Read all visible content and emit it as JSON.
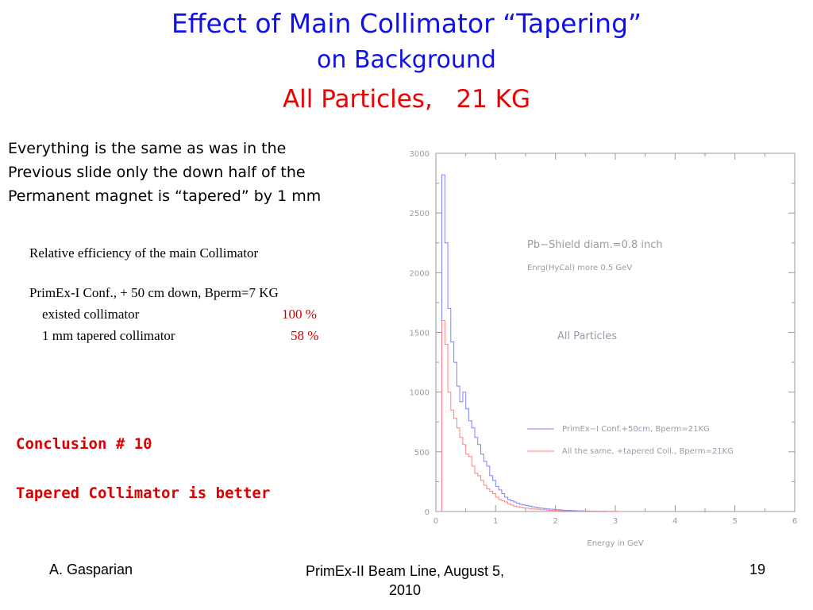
{
  "slide": {
    "title_line1": "Effect of Main Collimator “Tapering”",
    "title_line2": "on Background",
    "title_line3": "All Particles,   21 KG",
    "description": [
      "Everything is the same as was in the",
      "Previous slide only the down half of the",
      "Permanent magnet is “tapered” by 1 mm"
    ],
    "efficiency": {
      "heading": "Relative efficiency of the main Collimator",
      "config": "PrimEx-I Conf., + 50 cm down, Bperm=7 KG",
      "rows": [
        {
          "label": "existed collimator",
          "value": "100 %"
        },
        {
          "label": "1 mm tapered collimator",
          "value": "58 %"
        }
      ]
    },
    "conclusion": {
      "title": "Conclusion # 10",
      "text": "Tapered Collimator is better"
    },
    "footer": {
      "author": "A. Gasparian",
      "event_line1": "PrimEx-II Beam Line, August 5,",
      "event_line2": "2010",
      "page": "19"
    }
  },
  "chart_data": {
    "type": "line",
    "title": "",
    "xlabel": "Energy in GeV",
    "ylabel": "",
    "xlim": [
      0,
      6
    ],
    "ylim": [
      0,
      3000
    ],
    "x_ticks": [
      "0",
      "1",
      "2",
      "3",
      "4",
      "5",
      "6"
    ],
    "y_ticks": [
      "0",
      "500",
      "1000",
      "1500",
      "2000",
      "2500",
      "3000"
    ],
    "annotations": [
      "Pb−Shield diam.=0.8 inch",
      "Enrg(HyCal) more 0.5 GeV",
      "All Particles"
    ],
    "grid": false,
    "legend_position": "lower-right",
    "bin_width": 0.05,
    "x_start": 0.1,
    "series": [
      {
        "name": "PrimEx−I Conf.+50cm, Bperm=21KG",
        "color": "#8080ff",
        "values": [
          2820,
          2250,
          1700,
          1420,
          1250,
          1050,
          920,
          1000,
          860,
          760,
          700,
          620,
          560,
          480,
          420,
          380,
          300,
          260,
          210,
          180,
          150,
          120,
          100,
          90,
          80,
          70,
          60,
          55,
          50,
          45,
          40,
          35,
          30,
          28,
          25,
          22,
          20,
          18,
          16,
          15,
          12,
          10,
          10,
          8,
          8,
          6,
          6,
          5,
          4,
          4,
          3,
          3,
          2,
          2,
          2,
          1,
          1,
          1,
          1,
          0
        ]
      },
      {
        "name": "All the same, +tapered Coll., Bperm=21KG",
        "color": "#ff8080",
        "values": [
          1600,
          1400,
          1000,
          850,
          780,
          700,
          620,
          560,
          480,
          460,
          380,
          320,
          300,
          260,
          220,
          190,
          170,
          150,
          120,
          100,
          90,
          80,
          65,
          55,
          45,
          40,
          35,
          30,
          28,
          25,
          22,
          20,
          18,
          15,
          14,
          12,
          10,
          9,
          8,
          7,
          6,
          5,
          5,
          4,
          4,
          3,
          3,
          2,
          2,
          2,
          1,
          1,
          1,
          1,
          1,
          0,
          0,
          0,
          0,
          0
        ]
      }
    ]
  }
}
